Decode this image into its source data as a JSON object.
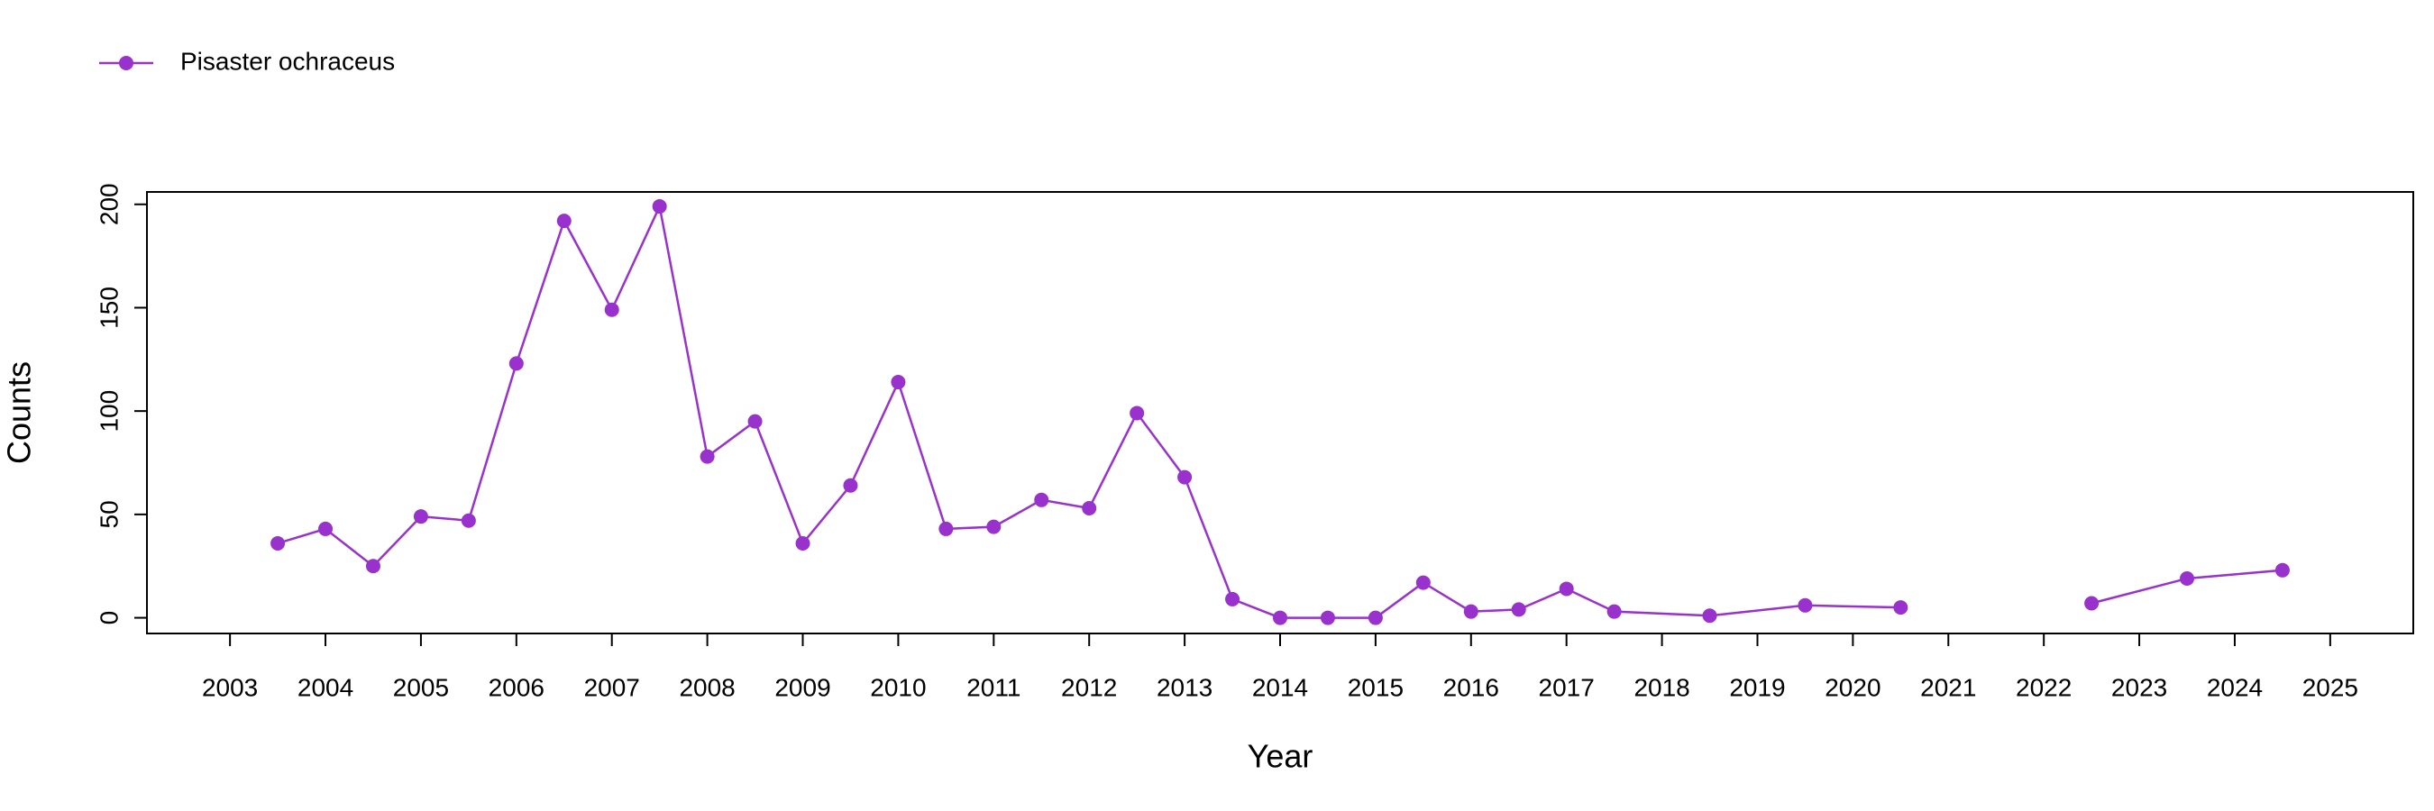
{
  "chart_data": {
    "type": "line",
    "x_label": "Year",
    "y_label": "Counts",
    "x": [
      2003.5,
      2004,
      2004.5,
      2005,
      2005.5,
      2006,
      2006.5,
      2007,
      2007.5,
      2008,
      2008.5,
      2009,
      2009.5,
      2010,
      2010.5,
      2011,
      2011.5,
      2012,
      2012.5,
      2013,
      2013.5,
      2014,
      2014.5,
      2015,
      2015.5,
      2016,
      2016.5,
      2017,
      2017.5,
      2018.5,
      2019.5,
      2020.5,
      2021.5,
      2022.5,
      2023.5,
      2024.5
    ],
    "series": [
      {
        "name": "Pisaster ochraceus",
        "color": "#9932cc",
        "values": [
          36,
          43,
          25,
          49,
          47,
          123,
          192,
          149,
          199,
          78,
          95,
          36,
          64,
          114,
          43,
          44,
          57,
          53,
          99,
          68,
          9,
          0,
          0,
          0,
          17,
          3,
          4,
          14,
          3,
          1,
          6,
          5,
          null,
          7,
          19,
          23
        ]
      }
    ],
    "xlim": [
      2002.13,
      2025.87
    ],
    "xticks": [
      2003,
      2004,
      2005,
      2006,
      2007,
      2008,
      2009,
      2010,
      2011,
      2012,
      2013,
      2014,
      2015,
      2016,
      2017,
      2018,
      2019,
      2020,
      2021,
      2022,
      2023,
      2024,
      2025
    ],
    "ylim": [
      -7.6,
      206
    ],
    "yticks": [
      0,
      50,
      100,
      150,
      200
    ],
    "legend": "top-left",
    "grid": false
  }
}
